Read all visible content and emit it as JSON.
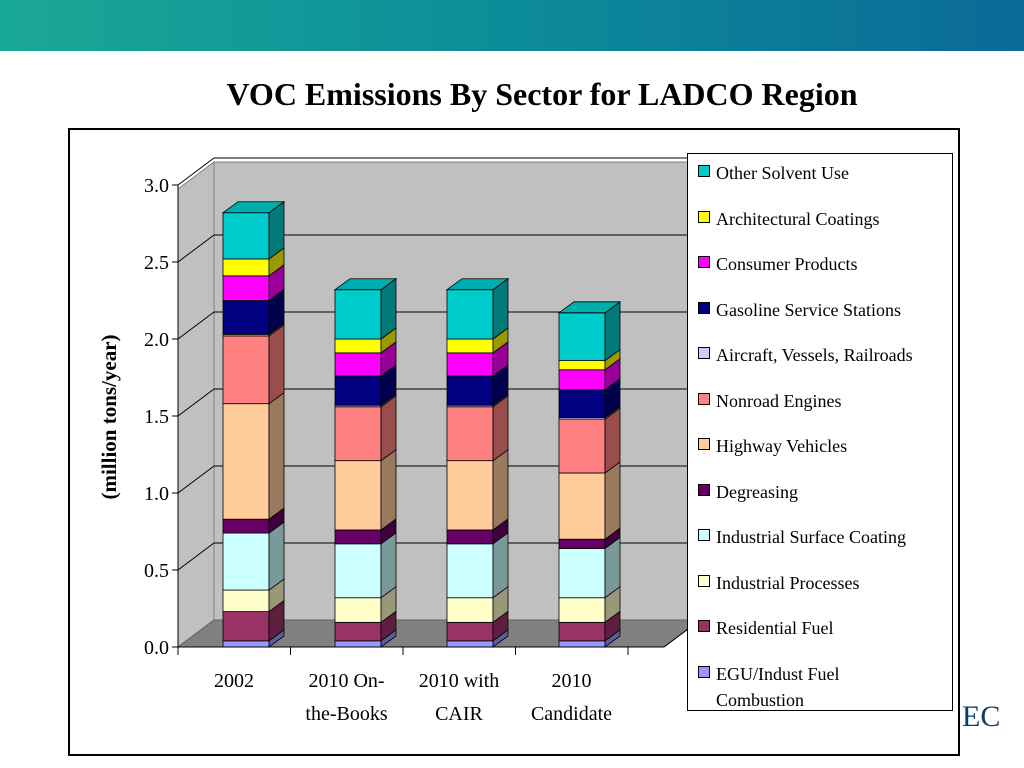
{
  "slide": {
    "title": "VOC Emissions By Sector for LADCO Region",
    "corner_text": "EC",
    "band_colors": [
      "#1aa896",
      "#0a6a98"
    ]
  },
  "chart_data": {
    "type": "bar",
    "stacked": true,
    "three_d": true,
    "title": "VOC Emissions By Sector for LADCO Region",
    "ylabel": "(million tons/year)",
    "xlabel": "",
    "ylim": [
      0,
      3.0
    ],
    "yticks": [
      "0.0",
      "0.5",
      "1.0",
      "1.5",
      "2.0",
      "2.5",
      "3.0"
    ],
    "categories": [
      [
        "2002"
      ],
      [
        "2010 On-",
        "the-Books"
      ],
      [
        "2010 with",
        "CAIR"
      ],
      [
        "2010",
        "Candidate"
      ]
    ],
    "grid": true,
    "legend_position": "right",
    "series": [
      {
        "name": "EGU/Indust Fuel Combustion",
        "legend_lines": [
          "EGU/Indust Fuel",
          "Combustion"
        ],
        "color": "#9999ff",
        "values": [
          0.04,
          0.04,
          0.04,
          0.04
        ]
      },
      {
        "name": "Residential Fuel",
        "color": "#993366",
        "values": [
          0.19,
          0.12,
          0.12,
          0.12
        ]
      },
      {
        "name": "Industrial Processes",
        "color": "#ffffcc",
        "values": [
          0.14,
          0.16,
          0.16,
          0.16
        ]
      },
      {
        "name": "Industrial Surface Coating",
        "color": "#ccffff",
        "values": [
          0.37,
          0.35,
          0.35,
          0.32
        ]
      },
      {
        "name": "Degreasing",
        "color": "#660066",
        "values": [
          0.09,
          0.09,
          0.09,
          0.06
        ]
      },
      {
        "name": "Highway Vehicles",
        "color": "#ffcc99",
        "values": [
          0.75,
          0.45,
          0.45,
          0.43
        ]
      },
      {
        "name": "Nonroad Engines",
        "color": "#ff8080",
        "values": [
          0.44,
          0.35,
          0.35,
          0.35
        ]
      },
      {
        "name": "Aircraft, Vessels, Railroads",
        "color": "#ccccff",
        "values": [
          0.01,
          0.01,
          0.01,
          0.01
        ]
      },
      {
        "name": "Gasoline Service Stations",
        "color": "#000080",
        "values": [
          0.22,
          0.19,
          0.19,
          0.18
        ]
      },
      {
        "name": "Consumer Products",
        "color": "#ff00ff",
        "values": [
          0.16,
          0.15,
          0.15,
          0.13
        ]
      },
      {
        "name": "Architectural Coatings",
        "color": "#ffff00",
        "values": [
          0.11,
          0.09,
          0.09,
          0.06
        ]
      },
      {
        "name": "Other Solvent Use",
        "color": "#00cccc",
        "values": [
          0.3,
          0.32,
          0.32,
          0.31
        ]
      }
    ]
  }
}
